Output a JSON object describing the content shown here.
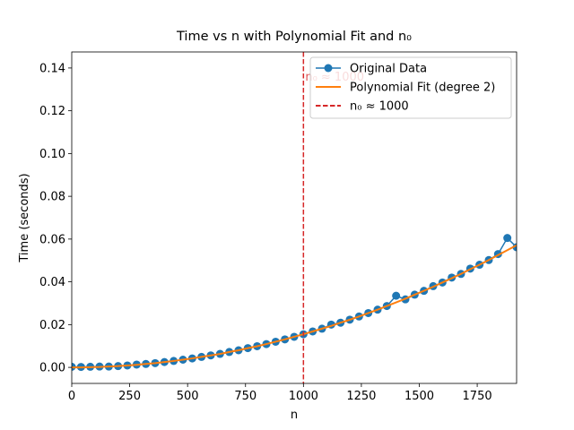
{
  "chart_data": {
    "type": "line",
    "title": "Time vs n with Polynomial Fit and n₀",
    "x_label": "n",
    "y_label": "Time (seconds)",
    "x": [
      0,
      40,
      80,
      120,
      160,
      200,
      240,
      280,
      320,
      360,
      400,
      440,
      480,
      520,
      560,
      600,
      640,
      680,
      720,
      760,
      800,
      840,
      880,
      920,
      960,
      1000,
      1040,
      1080,
      1120,
      1160,
      1200,
      1240,
      1280,
      1320,
      1360,
      1400,
      1440,
      1480,
      1520,
      1560,
      1600,
      1640,
      1680,
      1720,
      1760,
      1800,
      1840,
      1880,
      1920
    ],
    "series": [
      {
        "name": "Original Data",
        "color": "#1f77b4",
        "marker": true,
        "values": [
          0.0003,
          0.0002,
          0.0003,
          0.0004,
          0.0004,
          0.0006,
          0.0009,
          0.0013,
          0.0016,
          0.002,
          0.0025,
          0.003,
          0.0036,
          0.0042,
          0.0049,
          0.0056,
          0.0063,
          0.0072,
          0.008,
          0.009,
          0.0099,
          0.0109,
          0.012,
          0.0131,
          0.0143,
          0.0155,
          0.0168,
          0.0181,
          0.02,
          0.0209,
          0.0223,
          0.0238,
          0.0254,
          0.027,
          0.0287,
          0.0335,
          0.0318,
          0.034,
          0.0358,
          0.038,
          0.0397,
          0.042,
          0.0437,
          0.0462,
          0.048,
          0.0502,
          0.053,
          0.0605,
          0.0562
        ]
      },
      {
        "name": "Polynomial Fit (degree 2)",
        "color": "#ff7f0e",
        "marker": false,
        "values": [
          0.0,
          0.0,
          0.0001,
          0.0002,
          0.0004,
          0.0006,
          0.0009,
          0.0012,
          0.0016,
          0.002,
          0.0025,
          0.003,
          0.0036,
          0.0042,
          0.0049,
          0.0056,
          0.0063,
          0.0072,
          0.008,
          0.009,
          0.0099,
          0.0109,
          0.012,
          0.0131,
          0.0143,
          0.0155,
          0.0168,
          0.0181,
          0.0194,
          0.0209,
          0.0223,
          0.0238,
          0.0254,
          0.027,
          0.0287,
          0.0304,
          0.0321,
          0.034,
          0.0358,
          0.0377,
          0.0397,
          0.0417,
          0.0437,
          0.0459,
          0.048,
          0.0502,
          0.0525,
          0.0548,
          0.0571
        ]
      }
    ],
    "vline": {
      "name": "n₀ ≈ 1000",
      "x": 1000,
      "color": "#d62728"
    },
    "annotation": "n₀ ≈ 1000",
    "xlim": [
      0,
      1920
    ],
    "ylim": [
      -0.0075,
      0.1475
    ],
    "xticks": [
      0,
      250,
      500,
      750,
      1000,
      1250,
      1500,
      1750
    ],
    "yticks": [
      {
        "value": 0,
        "label": "0.00"
      },
      {
        "value": 0.02,
        "label": "0.02"
      },
      {
        "value": 0.04,
        "label": "0.04"
      },
      {
        "value": 0.06,
        "label": "0.06"
      },
      {
        "value": 0.08,
        "label": "0.08"
      },
      {
        "value": 0.1,
        "label": "0.10"
      },
      {
        "value": 0.12,
        "label": "0.12"
      },
      {
        "value": 0.14,
        "label": "0.14"
      }
    ],
    "legend": "upper right"
  }
}
